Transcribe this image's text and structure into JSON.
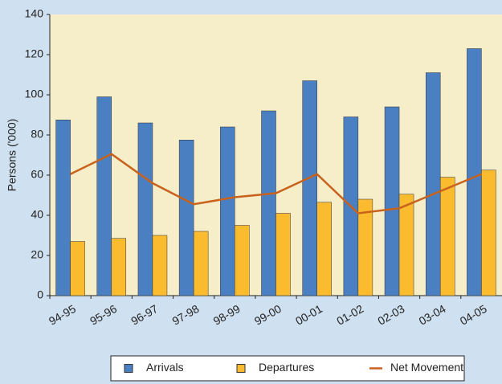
{
  "chart_data": {
    "type": "bar",
    "y_label": "Persons ('000)",
    "categories": [
      "94-95",
      "95-96",
      "96-97",
      "97-98",
      "98-99",
      "99-00",
      "00-01",
      "01-02",
      "02-03",
      "03-04",
      "04-05"
    ],
    "series": [
      {
        "name": "Arrivals",
        "color": "#4a7fc2",
        "kind": "bar",
        "values": [
          87.5,
          99,
          86,
          77.5,
          84,
          92,
          107,
          89,
          94,
          111,
          123
        ]
      },
      {
        "name": "Departures",
        "color": "#fbbb2f",
        "kind": "bar",
        "values": [
          27,
          28.5,
          30,
          32,
          35,
          41,
          46.5,
          48,
          50.5,
          59,
          62.5
        ]
      },
      {
        "name": "Net Movement",
        "color": "#c8621c",
        "kind": "line",
        "values": [
          60.5,
          70.5,
          56,
          45.5,
          49,
          51,
          60.5,
          41,
          43.5,
          52,
          60.5
        ]
      }
    ],
    "ylim": [
      0,
      140
    ],
    "yticks": [
      0,
      20,
      40,
      60,
      80,
      100,
      120,
      140
    ],
    "grid": false,
    "legend": "bottom"
  }
}
